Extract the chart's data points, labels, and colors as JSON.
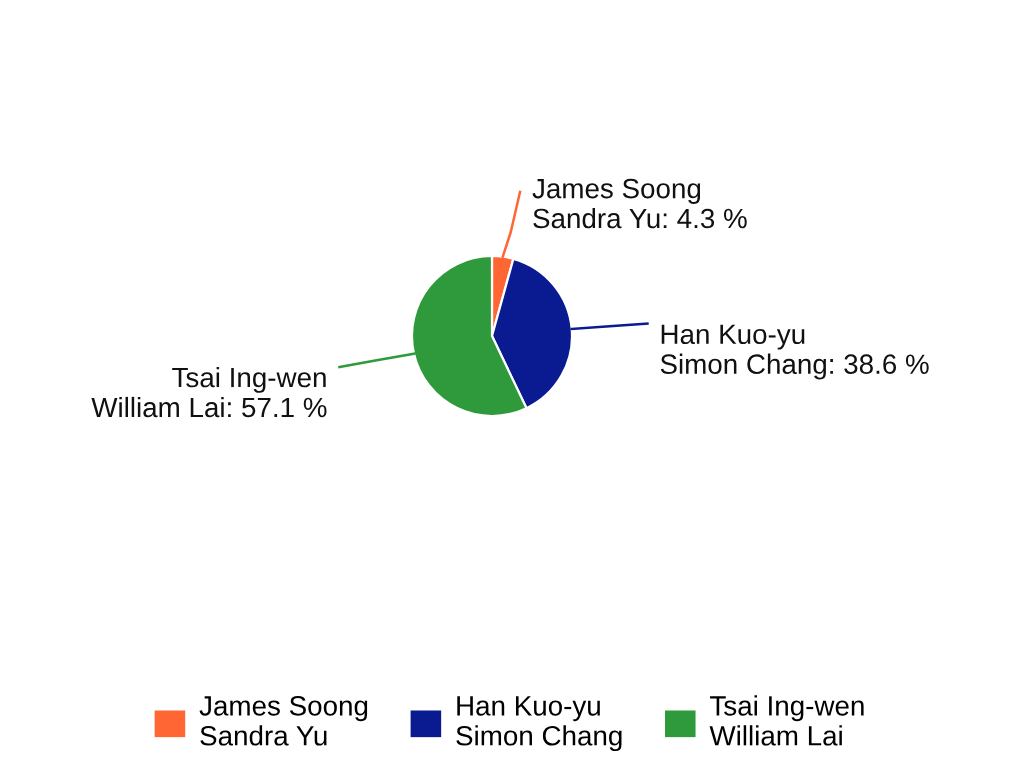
{
  "chart_data": {
    "type": "pie",
    "categories": [
      "James Soong\nSandra Yu",
      "Han Kuo-yu\nSimon Chang",
      "Tsai Ing-wen\nWilliam Lai"
    ],
    "values": [
      4.3,
      38.6,
      57.1
    ],
    "colors": [
      "#ff6633",
      "#0a1a91",
      "#2e9a3c"
    ],
    "value_labels": [
      ": 4.3 %",
      ": 38.6 %",
      ": 57.1 %"
    ],
    "legend": "bottom"
  }
}
